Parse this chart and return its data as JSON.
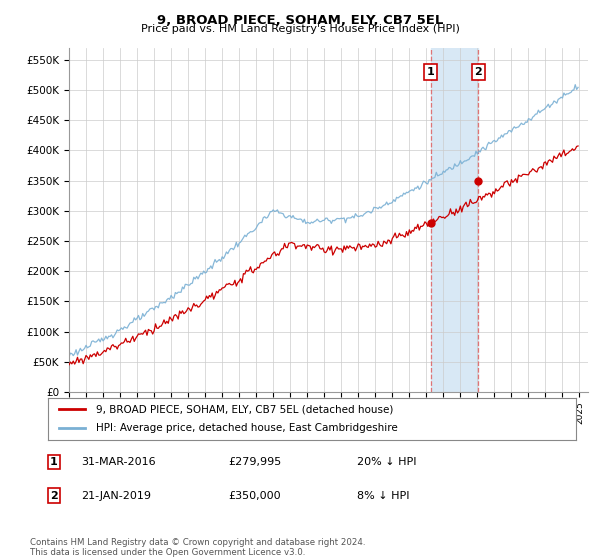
{
  "title": "9, BROAD PIECE, SOHAM, ELY, CB7 5EL",
  "subtitle": "Price paid vs. HM Land Registry's House Price Index (HPI)",
  "ylabel_ticks": [
    "£0",
    "£50K",
    "£100K",
    "£150K",
    "£200K",
    "£250K",
    "£300K",
    "£350K",
    "£400K",
    "£450K",
    "£500K",
    "£550K"
  ],
  "ytick_values": [
    0,
    50000,
    100000,
    150000,
    200000,
    250000,
    300000,
    350000,
    400000,
    450000,
    500000,
    550000
  ],
  "ylim": [
    0,
    570000
  ],
  "xlim_start": 1995.0,
  "xlim_end": 2025.5,
  "hpi_color": "#7ab0d4",
  "price_color": "#cc0000",
  "transaction1_date": 2016.25,
  "transaction1_value": 279995,
  "transaction2_date": 2019.05,
  "transaction2_value": 350000,
  "legend_label_red": "9, BROAD PIECE, SOHAM, ELY, CB7 5EL (detached house)",
  "legend_label_blue": "HPI: Average price, detached house, East Cambridgeshire",
  "footnote": "Contains HM Land Registry data © Crown copyright and database right 2024.\nThis data is licensed under the Open Government Licence v3.0.",
  "background_color": "#ffffff",
  "grid_color": "#cccccc",
  "shaded_region_color": "#d8e8f5",
  "label1_text": "1",
  "label2_text": "2",
  "row1_num": "1",
  "row1_date": "31-MAR-2016",
  "row1_price": "£279,995",
  "row1_hpi": "20% ↓ HPI",
  "row2_num": "2",
  "row2_date": "21-JAN-2019",
  "row2_price": "£350,000",
  "row2_hpi": "8% ↓ HPI"
}
